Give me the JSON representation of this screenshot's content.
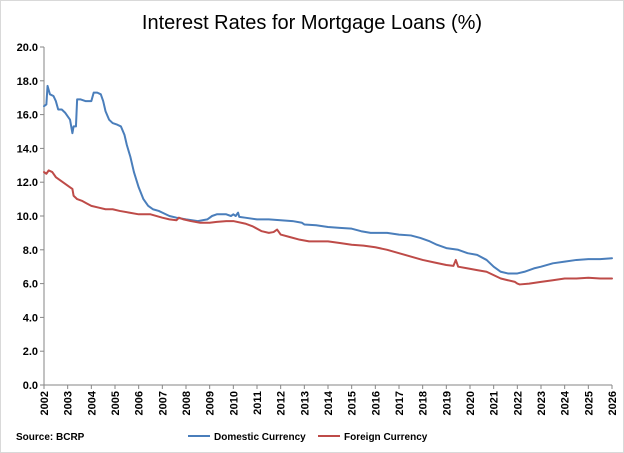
{
  "chart_data": {
    "type": "line",
    "title": "Interest Rates for Mortgage Loans (%)",
    "source": "Source: BCRP",
    "xlim": [
      2002,
      2026
    ],
    "ylim": [
      0,
      20
    ],
    "y_ticks": [
      0,
      2,
      4,
      6,
      8,
      10,
      12,
      14,
      16,
      18,
      20
    ],
    "y_tick_labels": [
      "0.0",
      "2.0",
      "4.0",
      "6.0",
      "8.0",
      "10.0",
      "12.0",
      "14.0",
      "16.0",
      "18.0",
      "20.0"
    ],
    "x_ticks": [
      2002,
      2003,
      2004,
      2005,
      2006,
      2007,
      2008,
      2009,
      2010,
      2011,
      2012,
      2013,
      2014,
      2015,
      2016,
      2017,
      2018,
      2019,
      2020,
      2021,
      2022,
      2023,
      2024,
      2025,
      2026
    ],
    "x_tick_labels": [
      "2002",
      "2003",
      "2004",
      "2005",
      "2006",
      "2007",
      "2008",
      "2009",
      "2010",
      "2011",
      "2012",
      "2013",
      "2014",
      "2015",
      "2016",
      "2017",
      "2018",
      "2019",
      "2020",
      "2021",
      "2022",
      "2023",
      "2024",
      "2025",
      "2026"
    ],
    "legend_position": "bottom",
    "grid": false,
    "series": [
      {
        "name": "Domestic Currency",
        "color": "#4a7ebb",
        "points": [
          [
            2002.0,
            16.5
          ],
          [
            2002.1,
            16.6
          ],
          [
            2002.15,
            17.7
          ],
          [
            2002.25,
            17.2
          ],
          [
            2002.4,
            17.1
          ],
          [
            2002.5,
            16.8
          ],
          [
            2002.6,
            16.3
          ],
          [
            2002.75,
            16.3
          ],
          [
            2002.9,
            16.1
          ],
          [
            2003.1,
            15.7
          ],
          [
            2003.2,
            14.9
          ],
          [
            2003.25,
            15.3
          ],
          [
            2003.35,
            15.3
          ],
          [
            2003.4,
            16.9
          ],
          [
            2003.55,
            16.9
          ],
          [
            2003.75,
            16.8
          ],
          [
            2004.0,
            16.8
          ],
          [
            2004.1,
            17.3
          ],
          [
            2004.25,
            17.3
          ],
          [
            2004.4,
            17.2
          ],
          [
            2004.5,
            16.8
          ],
          [
            2004.6,
            16.2
          ],
          [
            2004.75,
            15.7
          ],
          [
            2004.9,
            15.5
          ],
          [
            2005.1,
            15.4
          ],
          [
            2005.25,
            15.3
          ],
          [
            2005.4,
            14.8
          ],
          [
            2005.5,
            14.2
          ],
          [
            2005.65,
            13.5
          ],
          [
            2005.8,
            12.6
          ],
          [
            2006.0,
            11.7
          ],
          [
            2006.2,
            11.0
          ],
          [
            2006.4,
            10.6
          ],
          [
            2006.6,
            10.4
          ],
          [
            2006.85,
            10.3
          ],
          [
            2007.0,
            10.2
          ],
          [
            2007.3,
            10.0
          ],
          [
            2007.6,
            9.9
          ],
          [
            2008.0,
            9.8
          ],
          [
            2008.5,
            9.7
          ],
          [
            2008.9,
            9.8
          ],
          [
            2009.1,
            10.0
          ],
          [
            2009.3,
            10.1
          ],
          [
            2009.7,
            10.1
          ],
          [
            2009.9,
            10.0
          ],
          [
            2010.0,
            10.1
          ],
          [
            2010.1,
            10.0
          ],
          [
            2010.2,
            10.2
          ],
          [
            2010.25,
            9.95
          ],
          [
            2010.5,
            9.9
          ],
          [
            2011.0,
            9.8
          ],
          [
            2011.5,
            9.8
          ],
          [
            2012.0,
            9.75
          ],
          [
            2012.5,
            9.7
          ],
          [
            2012.9,
            9.6
          ],
          [
            2013.0,
            9.5
          ],
          [
            2013.5,
            9.45
          ],
          [
            2014.0,
            9.35
          ],
          [
            2014.5,
            9.3
          ],
          [
            2015.0,
            9.25
          ],
          [
            2015.4,
            9.1
          ],
          [
            2015.8,
            9.0
          ],
          [
            2016.0,
            9.0
          ],
          [
            2016.5,
            9.0
          ],
          [
            2017.0,
            8.9
          ],
          [
            2017.5,
            8.85
          ],
          [
            2017.9,
            8.7
          ],
          [
            2018.3,
            8.5
          ],
          [
            2018.6,
            8.3
          ],
          [
            2019.0,
            8.1
          ],
          [
            2019.5,
            8.0
          ],
          [
            2019.9,
            7.8
          ],
          [
            2020.3,
            7.7
          ],
          [
            2020.7,
            7.4
          ],
          [
            2021.0,
            7.0
          ],
          [
            2021.3,
            6.7
          ],
          [
            2021.6,
            6.6
          ],
          [
            2022.0,
            6.6
          ],
          [
            2022.3,
            6.7
          ],
          [
            2022.7,
            6.9
          ],
          [
            2023.0,
            7.0
          ],
          [
            2023.5,
            7.2
          ],
          [
            2024.0,
            7.3
          ],
          [
            2024.5,
            7.4
          ],
          [
            2025.0,
            7.45
          ],
          [
            2025.5,
            7.45
          ],
          [
            2026.0,
            7.5
          ]
        ]
      },
      {
        "name": "Foreign Currency",
        "color": "#be4b48",
        "points": [
          [
            2002.0,
            12.6
          ],
          [
            2002.1,
            12.5
          ],
          [
            2002.2,
            12.7
          ],
          [
            2002.35,
            12.6
          ],
          [
            2002.5,
            12.3
          ],
          [
            2002.7,
            12.1
          ],
          [
            2002.9,
            11.9
          ],
          [
            2003.1,
            11.7
          ],
          [
            2003.2,
            11.6
          ],
          [
            2003.25,
            11.2
          ],
          [
            2003.4,
            11.0
          ],
          [
            2003.6,
            10.9
          ],
          [
            2003.8,
            10.75
          ],
          [
            2004.0,
            10.6
          ],
          [
            2004.3,
            10.5
          ],
          [
            2004.6,
            10.4
          ],
          [
            2004.9,
            10.4
          ],
          [
            2005.2,
            10.3
          ],
          [
            2005.6,
            10.2
          ],
          [
            2006.0,
            10.1
          ],
          [
            2006.5,
            10.1
          ],
          [
            2007.0,
            9.9
          ],
          [
            2007.3,
            9.8
          ],
          [
            2007.6,
            9.75
          ],
          [
            2007.7,
            9.9
          ],
          [
            2007.9,
            9.8
          ],
          [
            2008.2,
            9.7
          ],
          [
            2008.6,
            9.6
          ],
          [
            2009.0,
            9.6
          ],
          [
            2009.3,
            9.65
          ],
          [
            2009.7,
            9.7
          ],
          [
            2010.0,
            9.7
          ],
          [
            2010.5,
            9.55
          ],
          [
            2010.8,
            9.4
          ],
          [
            2011.2,
            9.1
          ],
          [
            2011.5,
            9.0
          ],
          [
            2011.7,
            9.05
          ],
          [
            2011.85,
            9.2
          ],
          [
            2012.0,
            8.9
          ],
          [
            2012.4,
            8.75
          ],
          [
            2012.8,
            8.6
          ],
          [
            2013.2,
            8.5
          ],
          [
            2013.6,
            8.5
          ],
          [
            2014.0,
            8.5
          ],
          [
            2014.5,
            8.4
          ],
          [
            2015.0,
            8.3
          ],
          [
            2015.5,
            8.25
          ],
          [
            2016.0,
            8.15
          ],
          [
            2016.5,
            8.0
          ],
          [
            2017.0,
            7.8
          ],
          [
            2017.5,
            7.6
          ],
          [
            2018.0,
            7.4
          ],
          [
            2018.5,
            7.25
          ],
          [
            2019.0,
            7.1
          ],
          [
            2019.3,
            7.05
          ],
          [
            2019.4,
            7.4
          ],
          [
            2019.5,
            7.0
          ],
          [
            2019.9,
            6.9
          ],
          [
            2020.3,
            6.8
          ],
          [
            2020.7,
            6.7
          ],
          [
            2021.0,
            6.5
          ],
          [
            2021.3,
            6.3
          ],
          [
            2021.6,
            6.2
          ],
          [
            2021.9,
            6.1
          ],
          [
            2022.0,
            6.0
          ],
          [
            2022.1,
            5.95
          ],
          [
            2022.5,
            6.0
          ],
          [
            2023.0,
            6.1
          ],
          [
            2023.5,
            6.2
          ],
          [
            2024.0,
            6.3
          ],
          [
            2024.5,
            6.3
          ],
          [
            2025.0,
            6.35
          ],
          [
            2025.5,
            6.3
          ],
          [
            2026.0,
            6.3
          ]
        ]
      }
    ]
  }
}
